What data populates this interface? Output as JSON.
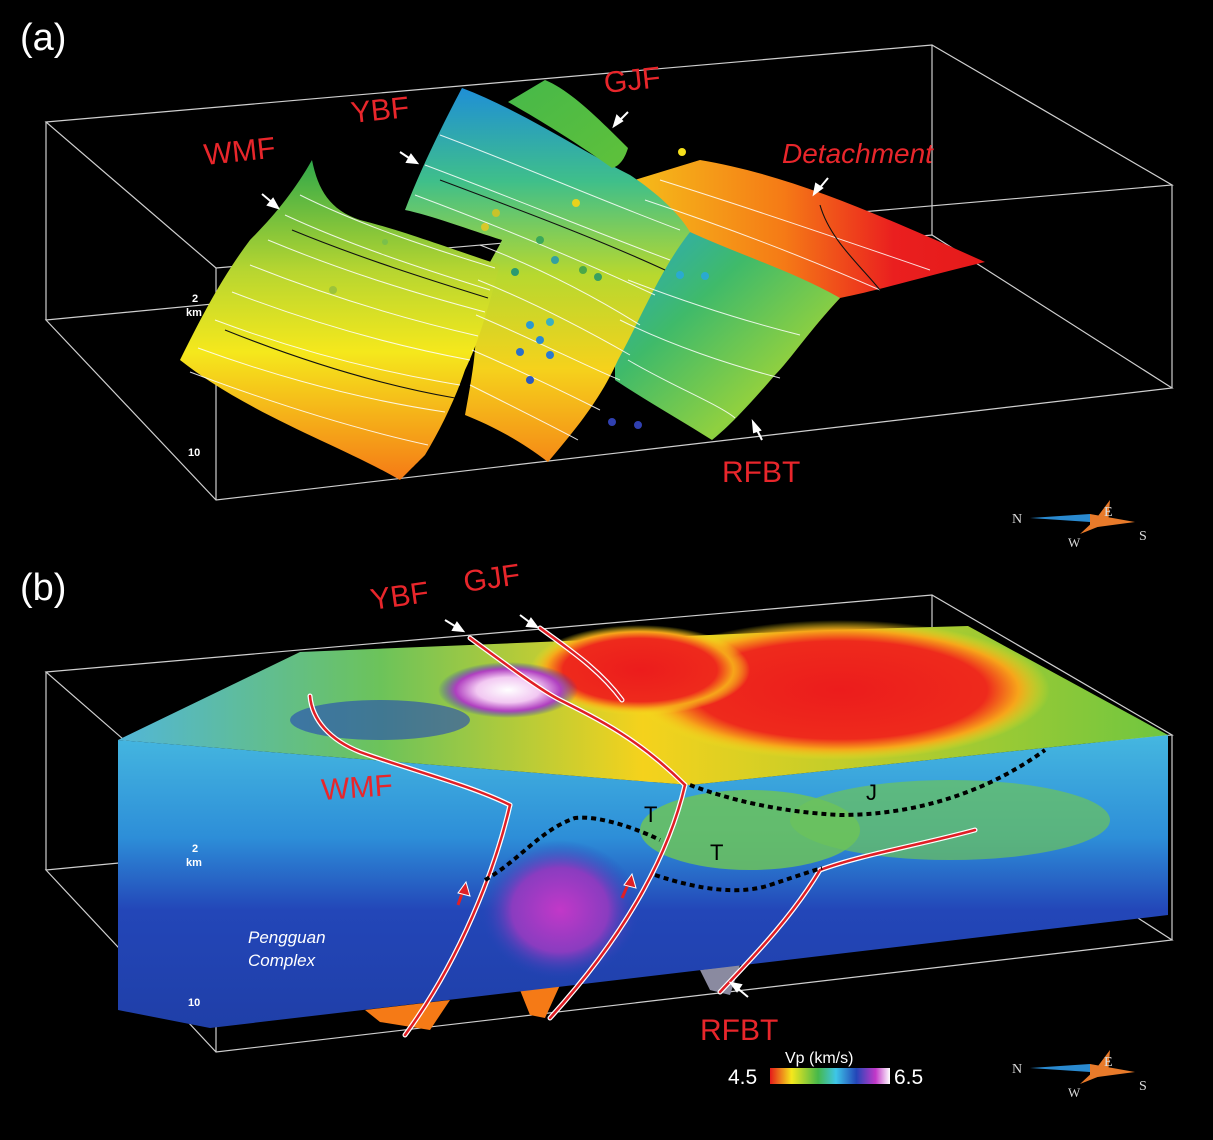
{
  "panels": {
    "a": {
      "label": "(a)",
      "faults": [
        "WMF",
        "YBF",
        "GJF",
        "Detachment",
        "RFBT"
      ],
      "depth_ticks": [
        "2",
        "km",
        "10"
      ],
      "compass": {
        "N": "N",
        "E": "E",
        "S": "S",
        "W": "W"
      }
    },
    "b": {
      "label": "(b)",
      "faults": [
        "YBF",
        "GJF",
        "WMF",
        "RFBT"
      ],
      "horizons": [
        "J",
        "T",
        "T"
      ],
      "unit_label_1": "Pengguan",
      "unit_label_2": "Complex",
      "depth_ticks": [
        "2",
        "km",
        "10"
      ],
      "compass": {
        "N": "N",
        "E": "E",
        "S": "S",
        "W": "W"
      },
      "colorbar": {
        "title": "Vp (km/s)",
        "min": "4.5",
        "max": "6.5"
      }
    }
  },
  "colors": {
    "fault_label": "#e8262b",
    "fault_line": "#e01f26",
    "box_frame": "#cfcfcf",
    "background": "#000000"
  }
}
